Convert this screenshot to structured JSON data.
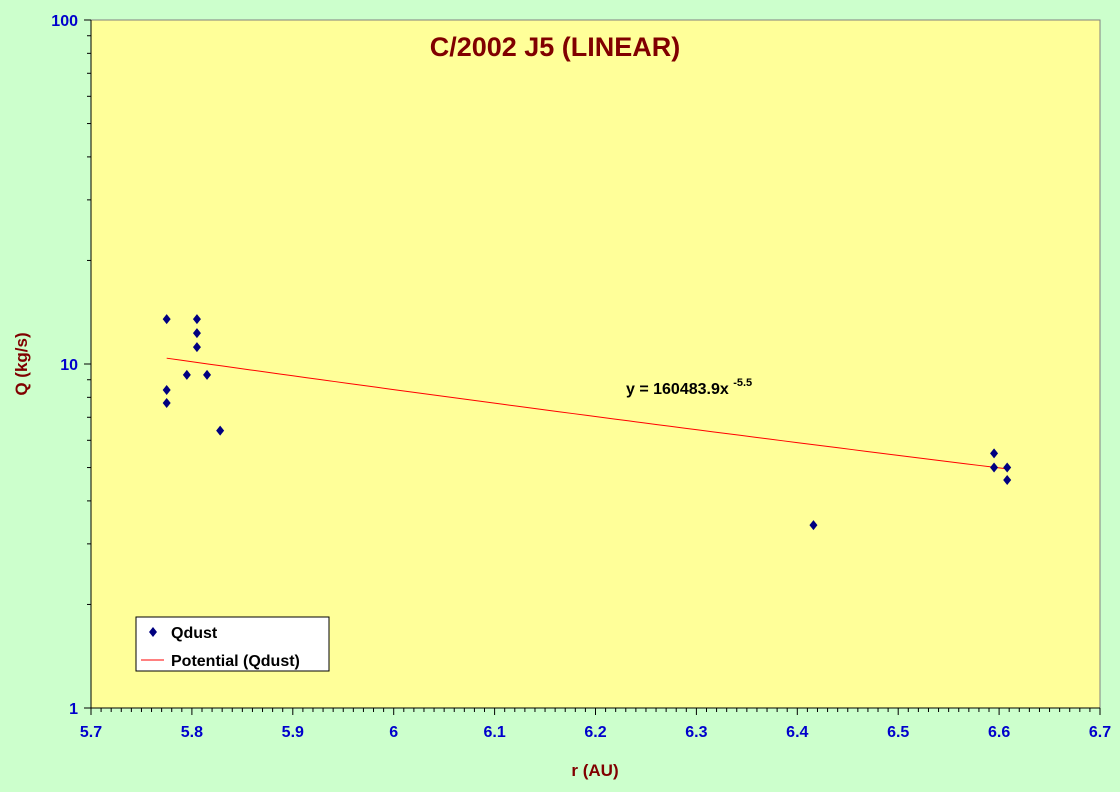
{
  "chart_data": {
    "type": "scatter",
    "title": "C/2002 J5 (LINEAR)",
    "xlabel": "r (AU)",
    "ylabel": "Q (kg/s)",
    "xlim": [
      5.7,
      6.7
    ],
    "ylim": [
      1,
      100
    ],
    "yscale": "log",
    "x_ticks": [
      "5.7",
      "5.8",
      "5.9",
      "6",
      "6.1",
      "6.2",
      "6.3",
      "6.4",
      "6.5",
      "6.6",
      "6.7"
    ],
    "y_ticks": [
      "1",
      "10",
      "100"
    ],
    "grid": false,
    "legend_position": "bottom-left",
    "series": [
      {
        "name": "Qdust",
        "color": "#000080",
        "marker": "diamond",
        "points": [
          {
            "x": 5.775,
            "y": 13.5
          },
          {
            "x": 5.775,
            "y": 8.4
          },
          {
            "x": 5.775,
            "y": 7.7
          },
          {
            "x": 5.795,
            "y": 9.3
          },
          {
            "x": 5.805,
            "y": 13.5
          },
          {
            "x": 5.805,
            "y": 12.3
          },
          {
            "x": 5.805,
            "y": 11.2
          },
          {
            "x": 5.815,
            "y": 9.3
          },
          {
            "x": 5.828,
            "y": 6.4
          },
          {
            "x": 6.416,
            "y": 3.4
          },
          {
            "x": 6.595,
            "y": 5.5
          },
          {
            "x": 6.595,
            "y": 5.0
          },
          {
            "x": 6.608,
            "y": 5.0
          },
          {
            "x": 6.608,
            "y": 4.6
          }
        ]
      },
      {
        "name": "Potential (Qdust)",
        "type": "trendline",
        "color": "#ff0000",
        "x_range": [
          5.775,
          6.608
        ],
        "coefficient": 160483.9,
        "exponent": -5.5
      }
    ],
    "annotation": {
      "equation": "y = 160483.9x",
      "exponent_label": "-5.5"
    }
  },
  "colors": {
    "page_bg": "#ccffcc",
    "plot_bg": "#ffff99",
    "axis": "#000000",
    "tick_labels": "#0000cc",
    "titles": "#800000"
  }
}
